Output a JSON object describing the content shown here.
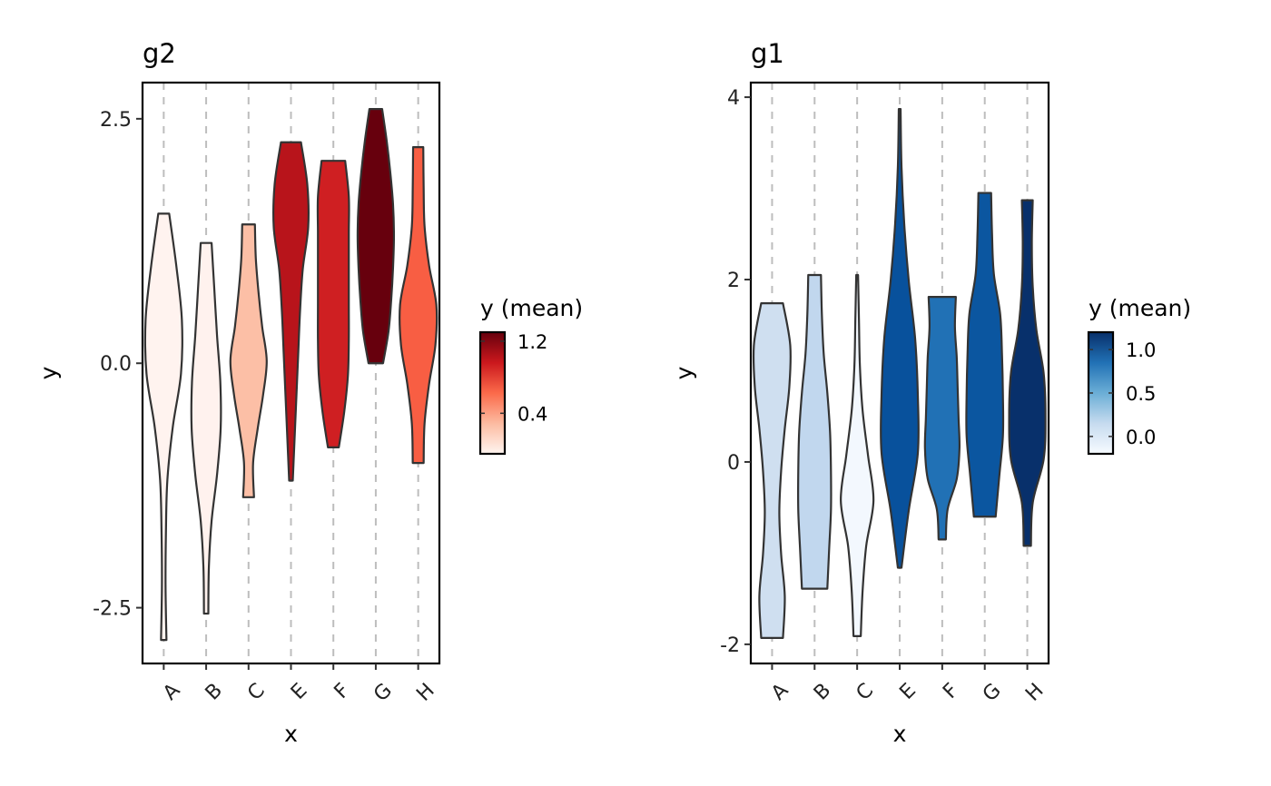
{
  "chart_data": [
    {
      "type": "violin",
      "title": "g2",
      "xlabel": "x",
      "ylabel": "y",
      "categories": [
        "A",
        "B",
        "C",
        "E",
        "F",
        "G",
        "H"
      ],
      "ylim": [
        -3.07,
        2.87
      ],
      "yticks": [
        2.5,
        0.0,
        -2.5
      ],
      "ytick_labels": [
        "2.5",
        "0.0",
        "-2.5"
      ],
      "grid": "vertical dashed",
      "violins": [
        {
          "cat": "A",
          "min": -2.83,
          "max": 1.53,
          "fill": "#fff3ef",
          "density": [
            0.15,
            0.1,
            0.12,
            0.2,
            0.5,
            0.95,
            1.0,
            0.7,
            0.3
          ]
        },
        {
          "cat": "B",
          "min": -2.56,
          "max": 1.23,
          "fill": "#fff2ee",
          "density": [
            0.12,
            0.15,
            0.3,
            0.6,
            0.8,
            0.78,
            0.6,
            0.45,
            0.3
          ]
        },
        {
          "cat": "C",
          "min": -1.37,
          "max": 1.42,
          "fill": "#fcbfa6",
          "density": [
            0.3,
            0.25,
            0.5,
            0.8,
            1.0,
            0.75,
            0.55,
            0.4,
            0.35
          ]
        },
        {
          "cat": "E",
          "min": -1.2,
          "max": 2.26,
          "fill": "#b8141b",
          "density": [
            0.1,
            0.2,
            0.3,
            0.4,
            0.5,
            0.65,
            0.95,
            0.9,
            0.55
          ]
        },
        {
          "cat": "F",
          "min": -0.86,
          "max": 2.07,
          "fill": "#cf1f22",
          "density": [
            0.3,
            0.6,
            0.8,
            0.85,
            0.85,
            0.85,
            0.85,
            0.85,
            0.65
          ]
        },
        {
          "cat": "G",
          "min": 0.0,
          "max": 2.6,
          "fill": "#67000d",
          "density": [
            0.4,
            0.7,
            0.85,
            0.95,
            1.0,
            0.95,
            0.8,
            0.6,
            0.35
          ]
        },
        {
          "cat": "H",
          "min": -1.02,
          "max": 2.21,
          "fill": "#f85e43",
          "density": [
            0.3,
            0.35,
            0.6,
            0.95,
            1.0,
            0.6,
            0.35,
            0.3,
            0.28
          ]
        }
      ],
      "legend": {
        "title": "y (mean)",
        "ticks": [
          "1.2",
          "0.4"
        ],
        "tick_values": [
          1.2,
          0.4
        ],
        "range": [
          -0.05,
          1.3
        ],
        "colors": [
          "#fff5f0",
          "#fcbba1",
          "#fb6a4a",
          "#cb181d",
          "#67000d"
        ],
        "placement": "right"
      }
    },
    {
      "type": "violin",
      "title": "g1",
      "xlabel": "x",
      "ylabel": "y",
      "categories": [
        "A",
        "B",
        "C",
        "E",
        "F",
        "G",
        "H"
      ],
      "ylim": [
        -2.21,
        4.16
      ],
      "yticks": [
        4,
        2,
        0,
        -2
      ],
      "ytick_labels": [
        "4",
        "2",
        "0",
        "-2"
      ],
      "grid": "vertical dashed",
      "violins": [
        {
          "cat": "A",
          "min": -1.93,
          "max": 1.74,
          "fill": "#cfdff0",
          "density": [
            0.6,
            0.7,
            0.5,
            0.4,
            0.5,
            0.7,
            0.95,
            1.0,
            0.6
          ]
        },
        {
          "cat": "B",
          "min": -1.39,
          "max": 2.05,
          "fill": "#c1d7ee",
          "density": [
            0.7,
            0.8,
            0.9,
            0.9,
            0.85,
            0.7,
            0.5,
            0.4,
            0.35
          ]
        },
        {
          "cat": "C",
          "min": -1.91,
          "max": 2.05,
          "fill": "#f3f8fe",
          "density": [
            0.2,
            0.3,
            0.5,
            0.9,
            0.6,
            0.3,
            0.15,
            0.1,
            0.05
          ]
        },
        {
          "cat": "E",
          "min": -1.16,
          "max": 3.87,
          "fill": "#08519c",
          "density": [
            0.1,
            0.5,
            1.0,
            1.0,
            0.85,
            0.5,
            0.25,
            0.1,
            0.05
          ]
        },
        {
          "cat": "F",
          "min": -0.85,
          "max": 1.81,
          "fill": "#2171b5",
          "density": [
            0.2,
            0.3,
            0.8,
            0.95,
            0.9,
            0.85,
            0.8,
            0.7,
            0.75
          ]
        },
        {
          "cat": "G",
          "min": -0.6,
          "max": 2.95,
          "fill": "#0b56a0",
          "density": [
            0.6,
            0.8,
            1.0,
            1.0,
            0.95,
            0.85,
            0.5,
            0.4,
            0.35
          ]
        },
        {
          "cat": "H",
          "min": -0.92,
          "max": 2.87,
          "fill": "#08306b",
          "density": [
            0.2,
            0.3,
            0.9,
            1.0,
            0.9,
            0.5,
            0.3,
            0.25,
            0.3
          ]
        }
      ],
      "legend": {
        "title": "y (mean)",
        "ticks": [
          "1.0",
          "0.5",
          "0.0"
        ],
        "tick_values": [
          1.0,
          0.5,
          0.0
        ],
        "range": [
          -0.2,
          1.2
        ],
        "colors": [
          "#f7fbff",
          "#c6dbef",
          "#6baed6",
          "#2171b5",
          "#08306b"
        ],
        "placement": "right"
      }
    }
  ]
}
